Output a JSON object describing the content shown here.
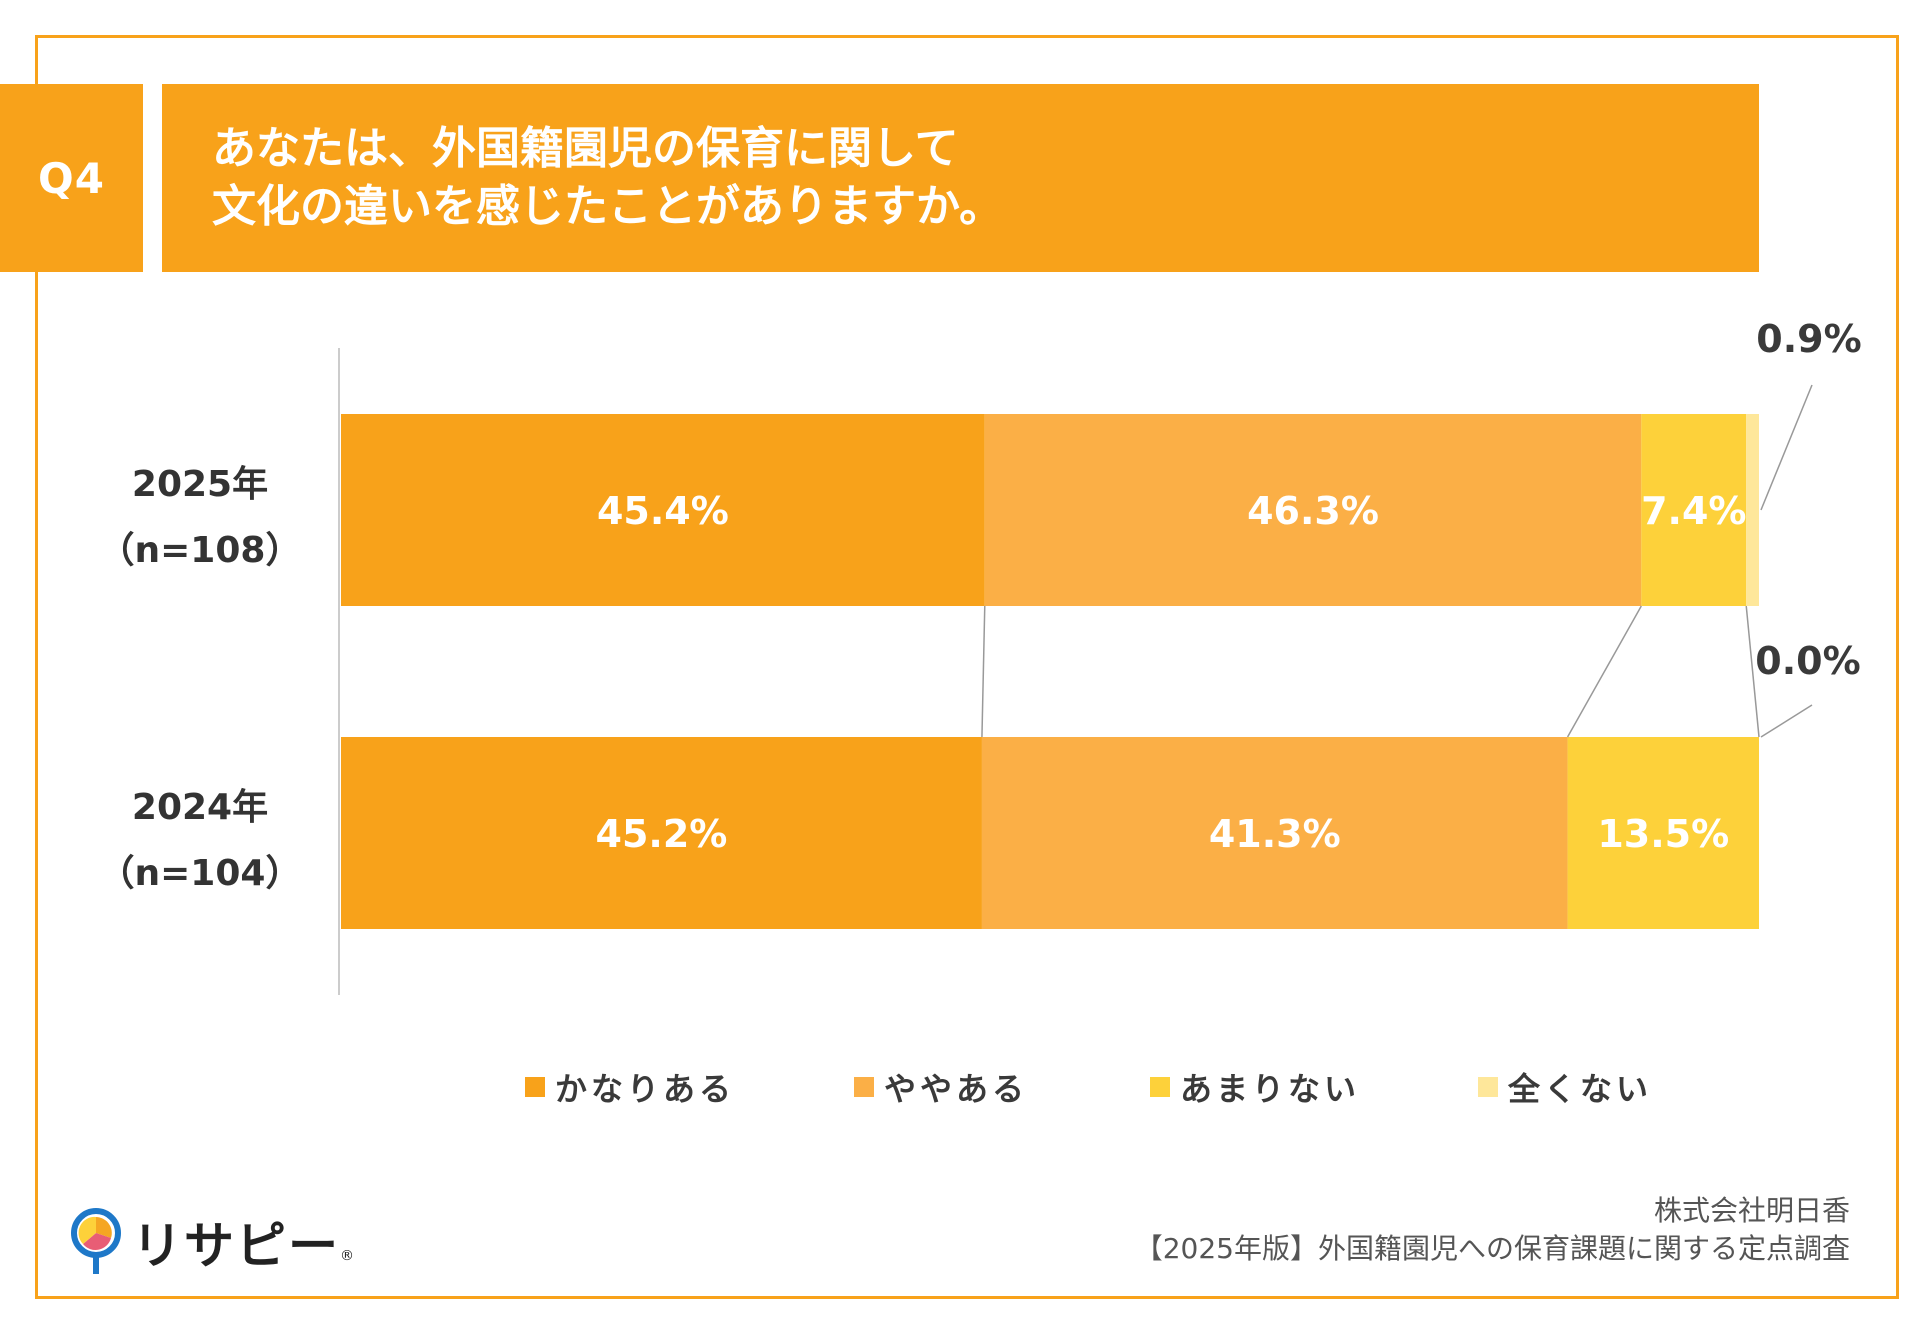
{
  "header": {
    "badge": "Q4",
    "title_line1": "あなたは、外国籍園児の保育に関して",
    "title_line2": "文化の違いを感じたことがありますか。"
  },
  "colors": {
    "accent": "#F8A21A",
    "series": [
      "#F8A21A",
      "#FBAF46",
      "#FDD13A",
      "#FEE79A"
    ],
    "axis": "#cccccc",
    "connector": "#999999"
  },
  "chart_data": {
    "type": "bar",
    "orientation": "horizontal",
    "stacked": true,
    "percent_stacked": true,
    "categories": [
      "2025年\n（n=108）",
      "2024年\n（n=104）"
    ],
    "category_lines": [
      [
        "2025年",
        "（n=108）"
      ],
      [
        "2024年",
        "（n=104）"
      ]
    ],
    "series": [
      {
        "name": "かなりある",
        "values": [
          45.4,
          45.2
        ],
        "labels": [
          "45.4%",
          "45.2%"
        ]
      },
      {
        "name": "ややある",
        "values": [
          46.3,
          41.3
        ],
        "labels": [
          "46.3%",
          "41.3%"
        ]
      },
      {
        "name": "あまりない",
        "values": [
          7.4,
          13.5
        ],
        "labels": [
          "7.4%",
          "13.5%"
        ]
      },
      {
        "name": "全くない",
        "values": [
          0.9,
          0.0
        ],
        "labels": [
          "0.9%",
          "0.0%"
        ]
      }
    ],
    "xlim": [
      0,
      100
    ],
    "legend": "bottom",
    "grid": false,
    "series_lines": true
  },
  "footer": {
    "logo_text": "リサピー",
    "logo_dot": "®",
    "company": "株式会社明日香",
    "survey": "【2025年版】外国籍園児への保育課題に関する定点調査"
  }
}
